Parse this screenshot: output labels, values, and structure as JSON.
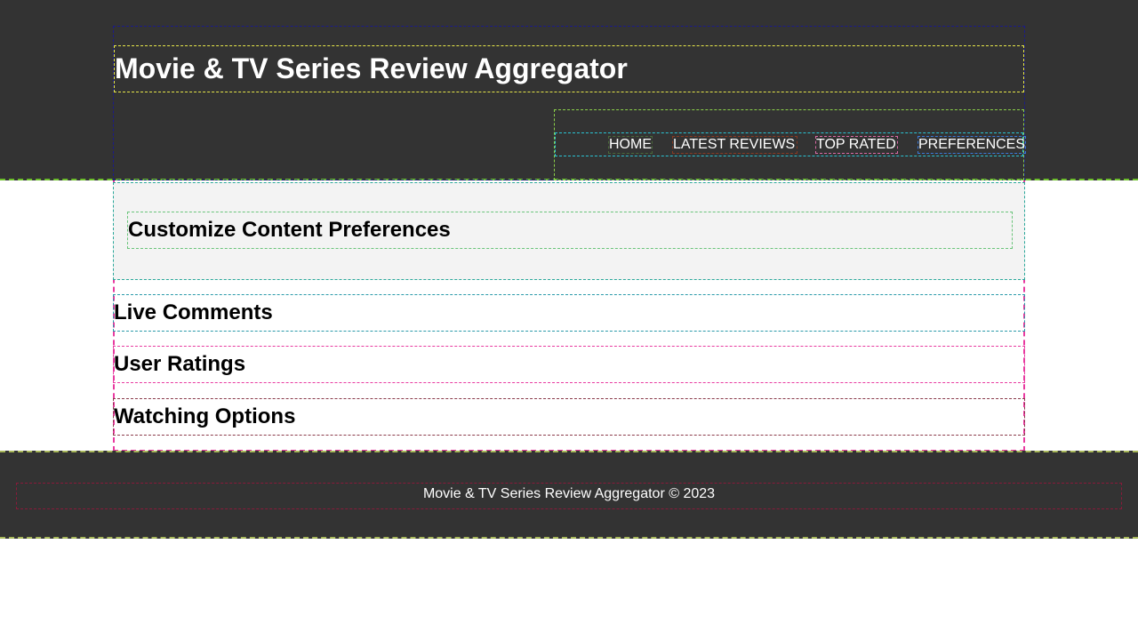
{
  "header": {
    "title": "Movie & TV Series Review Aggregator",
    "nav": {
      "home": "HOME",
      "latest_reviews": "LATEST REVIEWS",
      "top_rated": "TOP RATED",
      "preferences": "PREFERENCES"
    }
  },
  "main": {
    "preferences_heading": "Customize Content Preferences",
    "live_comments_heading": "Live Comments",
    "user_ratings_heading": "User Ratings",
    "watching_options_heading": "Watching Options"
  },
  "footer": {
    "text": "Movie & TV Series Review Aggregator © 2023"
  },
  "colors": {
    "header_bg": "#333333",
    "footer_bg": "#333333",
    "panel_bg": "#f3f3f3",
    "header_text": "#ffffff"
  }
}
